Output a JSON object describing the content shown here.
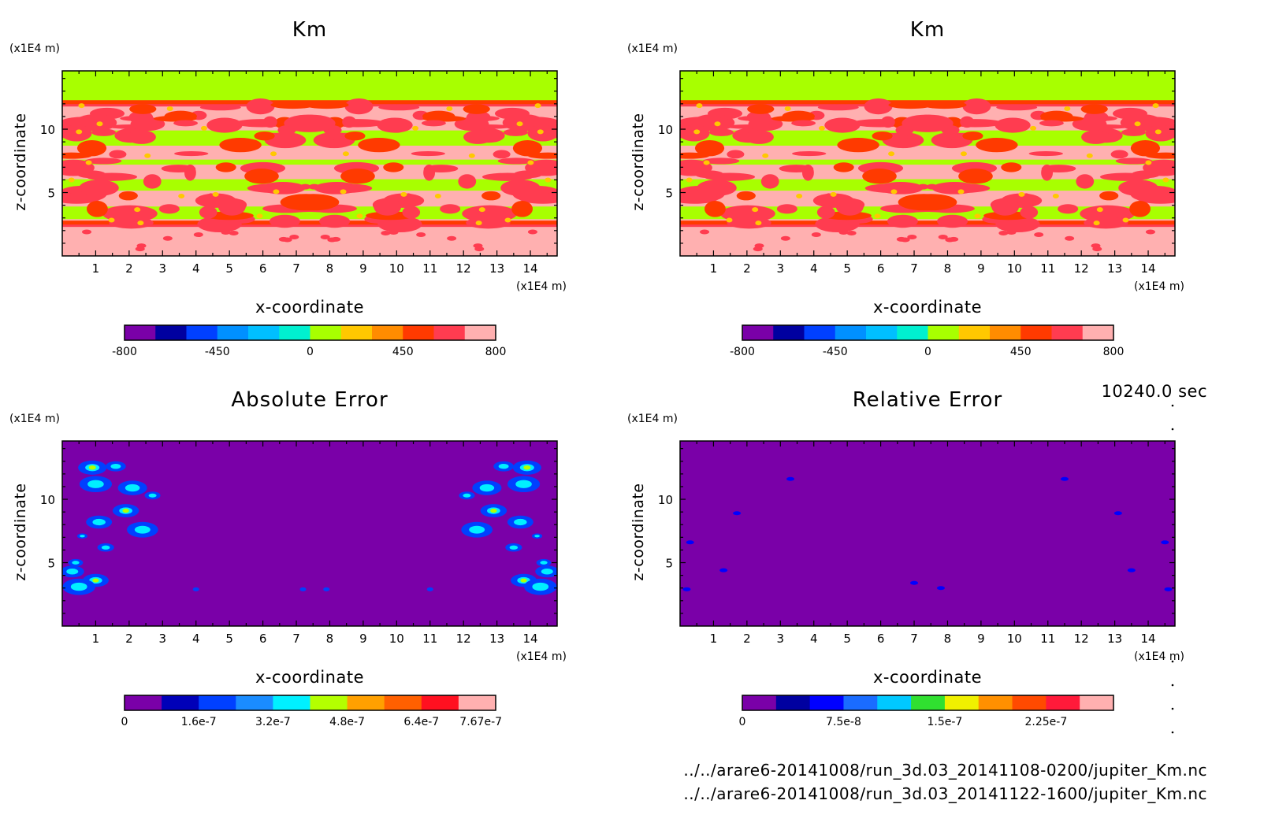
{
  "time_label": "10240.0 sec",
  "files": [
    "../../arare6-20141008/run_3d.03_20141108-0200/jupiter_Km.nc",
    "../../arare6-20141008/run_3d.03_20141122-1600/jupiter_Km.nc"
  ],
  "chart_data": [
    {
      "type": "heatmap",
      "title": "Km",
      "xlabel": "x-coordinate",
      "ylabel": "z-coordinate",
      "xunit": "(x1E4 m)",
      "yunit": "(x1E4 m)",
      "xticks": [
        1,
        2,
        3,
        4,
        5,
        6,
        7,
        8,
        9,
        10,
        11,
        12,
        13,
        14
      ],
      "yticks": [
        5,
        10
      ],
      "xlim": [
        0,
        14.8
      ],
      "ylim": [
        0,
        14.6
      ],
      "colorbar": {
        "colors": [
          "#7a00a8",
          "#0000a0",
          "#0040ff",
          "#0090ff",
          "#00bfff",
          "#00f0d0",
          "#a8ff00",
          "#ffc800",
          "#ff8c00",
          "#ff3a00",
          "#ff3c50",
          "#ffb0b0"
        ],
        "tick_labels": [
          "-800",
          "-450",
          "0",
          "450",
          "800"
        ],
        "tick_index": [
          0,
          3,
          6,
          9,
          12
        ]
      },
      "pattern": "km"
    },
    {
      "type": "heatmap",
      "title": "Km",
      "xlabel": "x-coordinate",
      "ylabel": "z-coordinate",
      "xunit": "(x1E4 m)",
      "yunit": "(x1E4 m)",
      "xticks": [
        1,
        2,
        3,
        4,
        5,
        6,
        7,
        8,
        9,
        10,
        11,
        12,
        13,
        14
      ],
      "yticks": [
        5,
        10
      ],
      "xlim": [
        0,
        14.8
      ],
      "ylim": [
        0,
        14.6
      ],
      "colorbar": {
        "colors": [
          "#7a00a8",
          "#0000a0",
          "#0040ff",
          "#0090ff",
          "#00bfff",
          "#00f0d0",
          "#a8ff00",
          "#ffc800",
          "#ff8c00",
          "#ff3a00",
          "#ff3c50",
          "#ffb0b0"
        ],
        "tick_labels": [
          "-800",
          "-450",
          "0",
          "450",
          "800"
        ],
        "tick_index": [
          0,
          3,
          6,
          9,
          12
        ]
      },
      "pattern": "km"
    },
    {
      "type": "heatmap",
      "title": "Absolute Error",
      "xlabel": "x-coordinate",
      "ylabel": "z-coordinate",
      "xunit": "(x1E4 m)",
      "yunit": "(x1E4 m)",
      "xticks": [
        1,
        2,
        3,
        4,
        5,
        6,
        7,
        8,
        9,
        10,
        11,
        12,
        13,
        14
      ],
      "yticks": [
        5,
        10
      ],
      "xlim": [
        0,
        14.8
      ],
      "ylim": [
        0,
        14.6
      ],
      "colorbar": {
        "colors": [
          "#7a00a8",
          "#0000b8",
          "#0040ff",
          "#1a8cff",
          "#00f0ff",
          "#b4ff00",
          "#ffa000",
          "#ff6000",
          "#ff1020",
          "#ffb0b0"
        ],
        "tick_labels": [
          "0",
          "1.6e-7",
          "3.2e-7",
          "4.8e-7",
          "6.4e-7",
          "7.67e-7"
        ],
        "tick_index": [
          0,
          2,
          4,
          6,
          8,
          9.6
        ]
      },
      "pattern": "abs"
    },
    {
      "type": "heatmap",
      "title": "Relative Error",
      "xlabel": "x-coordinate",
      "ylabel": "z-coordinate",
      "xunit": "(x1E4 m)",
      "yunit": "(x1E4 m)",
      "xticks": [
        1,
        2,
        3,
        4,
        5,
        6,
        7,
        8,
        9,
        10,
        11,
        12,
        13,
        14
      ],
      "yticks": [
        5,
        10
      ],
      "xlim": [
        0,
        14.8
      ],
      "ylim": [
        0,
        14.6
      ],
      "colorbar": {
        "colors": [
          "#7a00a8",
          "#0000a0",
          "#0000ff",
          "#1a6cff",
          "#00c8ff",
          "#30e030",
          "#f0f000",
          "#ff9000",
          "#ff4a00",
          "#ff1a3a",
          "#ffb0b0"
        ],
        "tick_labels": [
          "0",
          "7.5e-8",
          "1.5e-7",
          "2.25e-7"
        ],
        "tick_index": [
          0,
          3,
          6,
          9
        ]
      },
      "pattern": "rel"
    }
  ]
}
